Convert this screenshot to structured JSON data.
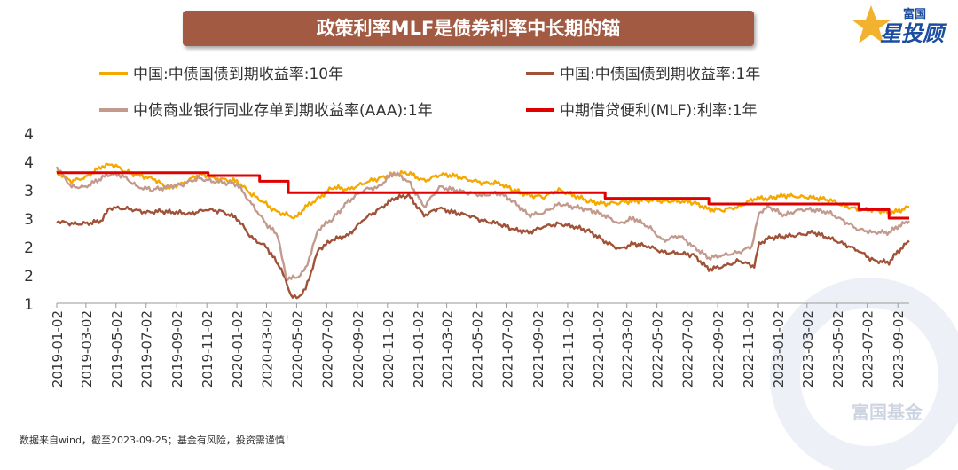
{
  "title": "政策利率MLF是债券利率中长期的锚",
  "brand": {
    "top": "富国",
    "main": "星投顾"
  },
  "watermark": "富国基金",
  "source_note": "数据来自wind，截至2023-09-25；基金有风险，投资需谨慎！",
  "colors": {
    "title_bg": "#a25a43",
    "cn10y": "#f5a800",
    "cn1y": "#a05238",
    "ncd": "#c39b8e",
    "mlf": "#e00000"
  },
  "chart_data": {
    "type": "line",
    "title": "政策利率MLF是债券利率中长期的锚",
    "xlabel": "",
    "ylabel": "",
    "ylim": [
      1.0,
      4.0
    ],
    "y_tick_labels": [
      "4",
      "4",
      "3",
      "3",
      "2",
      "2",
      "1"
    ],
    "x_tick_labels": [
      "2019-01-02",
      "2019-03-02",
      "2019-05-02",
      "2019-07-02",
      "2019-09-02",
      "2019-11-02",
      "2020-01-02",
      "2020-03-02",
      "2020-05-02",
      "2020-07-02",
      "2020-09-02",
      "2020-11-02",
      "2021-01-02",
      "2021-03-02",
      "2021-05-02",
      "2021-07-02",
      "2021-09-02",
      "2021-11-02",
      "2022-01-02",
      "2022-03-02",
      "2022-05-02",
      "2022-07-02",
      "2022-09-02",
      "2022-11-02",
      "2023-01-02",
      "2023-03-02",
      "2023-05-02",
      "2023-07-02",
      "2023-09-02"
    ],
    "x_range": [
      "2019-01-02",
      "2023-09-25"
    ],
    "legend_position": "top",
    "series": [
      {
        "name": "中国:中债国债到期收益率:10年",
        "color": "#f5a800",
        "step": false,
        "points": [
          [
            "2019-01-02",
            3.3
          ],
          [
            "2019-02-01",
            3.15
          ],
          [
            "2019-03-01",
            3.22
          ],
          [
            "2019-04-01",
            3.4
          ],
          [
            "2019-04-20",
            3.45
          ],
          [
            "2019-05-02",
            3.42
          ],
          [
            "2019-05-20",
            3.32
          ],
          [
            "2019-06-20",
            3.25
          ],
          [
            "2019-07-20",
            3.18
          ],
          [
            "2019-08-15",
            3.02
          ],
          [
            "2019-09-15",
            3.12
          ],
          [
            "2019-10-20",
            3.28
          ],
          [
            "2019-11-20",
            3.2
          ],
          [
            "2020-01-02",
            3.15
          ],
          [
            "2020-02-01",
            2.92
          ],
          [
            "2020-03-01",
            2.75
          ],
          [
            "2020-03-20",
            2.62
          ],
          [
            "2020-04-15",
            2.55
          ],
          [
            "2020-04-30",
            2.5
          ],
          [
            "2020-05-20",
            2.7
          ],
          [
            "2020-06-15",
            2.85
          ],
          [
            "2020-07-15",
            3.05
          ],
          [
            "2020-08-15",
            3.0
          ],
          [
            "2020-09-15",
            3.12
          ],
          [
            "2020-10-15",
            3.2
          ],
          [
            "2020-11-15",
            3.28
          ],
          [
            "2020-12-15",
            3.3
          ],
          [
            "2021-01-15",
            3.15
          ],
          [
            "2021-02-15",
            3.27
          ],
          [
            "2021-03-15",
            3.25
          ],
          [
            "2021-04-15",
            3.18
          ],
          [
            "2021-05-15",
            3.12
          ],
          [
            "2021-06-15",
            3.12
          ],
          [
            "2021-07-15",
            3.0
          ],
          [
            "2021-08-15",
            2.9
          ],
          [
            "2021-09-15",
            2.88
          ],
          [
            "2021-10-15",
            3.0
          ],
          [
            "2021-11-15",
            2.9
          ],
          [
            "2021-12-15",
            2.8
          ],
          [
            "2022-01-15",
            2.75
          ],
          [
            "2022-02-15",
            2.78
          ],
          [
            "2022-03-15",
            2.8
          ],
          [
            "2022-04-15",
            2.82
          ],
          [
            "2022-05-15",
            2.8
          ],
          [
            "2022-06-15",
            2.8
          ],
          [
            "2022-07-15",
            2.78
          ],
          [
            "2022-08-15",
            2.65
          ],
          [
            "2022-09-15",
            2.65
          ],
          [
            "2022-10-15",
            2.7
          ],
          [
            "2022-11-15",
            2.85
          ],
          [
            "2022-12-15",
            2.85
          ],
          [
            "2023-01-15",
            2.9
          ],
          [
            "2023-02-15",
            2.88
          ],
          [
            "2023-03-15",
            2.86
          ],
          [
            "2023-04-15",
            2.83
          ],
          [
            "2023-05-15",
            2.72
          ],
          [
            "2023-06-15",
            2.65
          ],
          [
            "2023-07-15",
            2.65
          ],
          [
            "2023-08-15",
            2.6
          ],
          [
            "2023-09-01",
            2.62
          ],
          [
            "2023-09-25",
            2.7
          ]
        ]
      },
      {
        "name": "中国:中债国债到期收益率:1年",
        "color": "#a05238",
        "step": false,
        "points": [
          [
            "2019-01-02",
            2.45
          ],
          [
            "2019-02-01",
            2.4
          ],
          [
            "2019-03-01",
            2.4
          ],
          [
            "2019-04-01",
            2.45
          ],
          [
            "2019-04-20",
            2.68
          ],
          [
            "2019-05-02",
            2.68
          ],
          [
            "2019-06-01",
            2.66
          ],
          [
            "2019-07-01",
            2.6
          ],
          [
            "2019-08-01",
            2.62
          ],
          [
            "2019-09-01",
            2.6
          ],
          [
            "2019-10-01",
            2.58
          ],
          [
            "2019-11-01",
            2.65
          ],
          [
            "2019-12-01",
            2.62
          ],
          [
            "2020-01-02",
            2.5
          ],
          [
            "2020-02-01",
            2.15
          ],
          [
            "2020-03-01",
            2.0
          ],
          [
            "2020-04-01",
            1.6
          ],
          [
            "2020-04-20",
            1.15
          ],
          [
            "2020-05-02",
            1.08
          ],
          [
            "2020-05-20",
            1.25
          ],
          [
            "2020-06-15",
            1.95
          ],
          [
            "2020-07-15",
            2.12
          ],
          [
            "2020-08-15",
            2.2
          ],
          [
            "2020-09-15",
            2.48
          ],
          [
            "2020-10-15",
            2.65
          ],
          [
            "2020-11-15",
            2.85
          ],
          [
            "2020-12-15",
            2.9
          ],
          [
            "2021-01-15",
            2.55
          ],
          [
            "2021-02-15",
            2.68
          ],
          [
            "2021-03-15",
            2.6
          ],
          [
            "2021-04-15",
            2.55
          ],
          [
            "2021-05-15",
            2.45
          ],
          [
            "2021-06-15",
            2.4
          ],
          [
            "2021-07-15",
            2.3
          ],
          [
            "2021-08-15",
            2.25
          ],
          [
            "2021-09-15",
            2.35
          ],
          [
            "2021-10-15",
            2.4
          ],
          [
            "2021-11-15",
            2.35
          ],
          [
            "2021-12-15",
            2.27
          ],
          [
            "2022-01-15",
            2.1
          ],
          [
            "2022-02-15",
            1.95
          ],
          [
            "2022-03-15",
            2.05
          ],
          [
            "2022-04-15",
            2.0
          ],
          [
            "2022-05-15",
            1.9
          ],
          [
            "2022-06-15",
            1.88
          ],
          [
            "2022-07-15",
            1.85
          ],
          [
            "2022-08-15",
            1.6
          ],
          [
            "2022-09-15",
            1.65
          ],
          [
            "2022-10-15",
            1.75
          ],
          [
            "2022-11-15",
            1.65
          ],
          [
            "2022-11-25",
            2.05
          ],
          [
            "2022-12-15",
            2.15
          ],
          [
            "2023-01-15",
            2.18
          ],
          [
            "2023-02-15",
            2.2
          ],
          [
            "2023-03-15",
            2.25
          ],
          [
            "2023-04-15",
            2.15
          ],
          [
            "2023-05-15",
            2.05
          ],
          [
            "2023-06-15",
            1.92
          ],
          [
            "2023-07-15",
            1.75
          ],
          [
            "2023-08-15",
            1.72
          ],
          [
            "2023-09-01",
            1.9
          ],
          [
            "2023-09-25",
            2.1
          ]
        ]
      },
      {
        "name": "中债商业银行同业存单到期收益率(AAA):1年",
        "color": "#c39b8e",
        "step": false,
        "points": [
          [
            "2019-01-02",
            3.4
          ],
          [
            "2019-02-01",
            3.05
          ],
          [
            "2019-03-01",
            3.05
          ],
          [
            "2019-04-01",
            3.2
          ],
          [
            "2019-04-20",
            3.28
          ],
          [
            "2019-05-15",
            3.25
          ],
          [
            "2019-06-15",
            3.05
          ],
          [
            "2019-07-15",
            3.0
          ],
          [
            "2019-08-15",
            3.05
          ],
          [
            "2019-09-15",
            3.1
          ],
          [
            "2019-10-15",
            3.2
          ],
          [
            "2019-11-15",
            3.15
          ],
          [
            "2019-12-15",
            3.12
          ],
          [
            "2020-01-02",
            3.1
          ],
          [
            "2020-02-01",
            2.75
          ],
          [
            "2020-03-01",
            2.4
          ],
          [
            "2020-03-25",
            2.2
          ],
          [
            "2020-04-10",
            1.45
          ],
          [
            "2020-05-02",
            1.45
          ],
          [
            "2020-05-20",
            1.6
          ],
          [
            "2020-06-15",
            2.3
          ],
          [
            "2020-07-15",
            2.5
          ],
          [
            "2020-08-15",
            2.8
          ],
          [
            "2020-09-15",
            3.0
          ],
          [
            "2020-10-15",
            3.05
          ],
          [
            "2020-11-15",
            3.3
          ],
          [
            "2020-12-15",
            3.15
          ],
          [
            "2021-01-15",
            2.7
          ],
          [
            "2021-02-15",
            3.05
          ],
          [
            "2021-03-15",
            3.0
          ],
          [
            "2021-04-15",
            2.95
          ],
          [
            "2021-05-15",
            2.9
          ],
          [
            "2021-06-15",
            2.95
          ],
          [
            "2021-07-15",
            2.8
          ],
          [
            "2021-08-15",
            2.55
          ],
          [
            "2021-09-15",
            2.6
          ],
          [
            "2021-10-15",
            2.75
          ],
          [
            "2021-11-15",
            2.7
          ],
          [
            "2021-12-15",
            2.65
          ],
          [
            "2022-01-15",
            2.55
          ],
          [
            "2022-02-15",
            2.4
          ],
          [
            "2022-03-15",
            2.5
          ],
          [
            "2022-04-15",
            2.35
          ],
          [
            "2022-05-15",
            2.1
          ],
          [
            "2022-06-15",
            2.2
          ],
          [
            "2022-07-15",
            2.0
          ],
          [
            "2022-08-15",
            1.8
          ],
          [
            "2022-09-15",
            1.85
          ],
          [
            "2022-10-15",
            1.9
          ],
          [
            "2022-11-10",
            2.0
          ],
          [
            "2022-11-25",
            2.6
          ],
          [
            "2022-12-15",
            2.7
          ],
          [
            "2023-01-15",
            2.55
          ],
          [
            "2023-02-15",
            2.65
          ],
          [
            "2023-03-15",
            2.65
          ],
          [
            "2023-04-15",
            2.6
          ],
          [
            "2023-05-15",
            2.45
          ],
          [
            "2023-06-15",
            2.3
          ],
          [
            "2023-07-15",
            2.25
          ],
          [
            "2023-08-15",
            2.25
          ],
          [
            "2023-09-01",
            2.35
          ],
          [
            "2023-09-25",
            2.45
          ]
        ]
      },
      {
        "name": "中期借贷便利(MLF):利率:1年",
        "color": "#e00000",
        "step": true,
        "points": [
          [
            "2019-01-02",
            3.3
          ],
          [
            "2019-11-05",
            3.25
          ],
          [
            "2020-02-17",
            3.15
          ],
          [
            "2020-04-15",
            2.95
          ],
          [
            "2021-12-15",
            2.95
          ],
          [
            "2022-01-17",
            2.85
          ],
          [
            "2022-08-15",
            2.75
          ],
          [
            "2023-06-15",
            2.65
          ],
          [
            "2023-08-15",
            2.5
          ],
          [
            "2023-09-25",
            2.5
          ]
        ]
      }
    ]
  }
}
